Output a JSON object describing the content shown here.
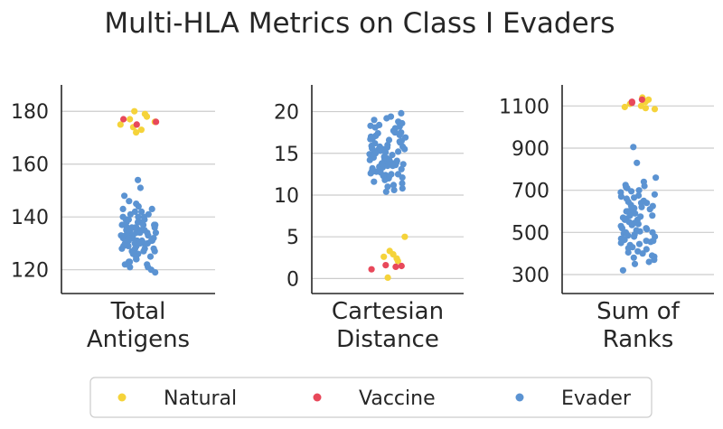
{
  "chart_data": {
    "type": "scatter",
    "title": "Multi-HLA Metrics on Class I Evaders",
    "grid": "horizontal",
    "legend_placement": "bottom",
    "series_colors": {
      "Natural": "#f5d33a",
      "Vaccine": "#e8485a",
      "Evader": "#5b93d2"
    },
    "legend": [
      "Natural",
      "Vaccine",
      "Evader"
    ],
    "panels": [
      {
        "category": "Total\nAntigens",
        "category_lines": [
          "Total",
          "Antigens"
        ],
        "yticks": [
          120,
          140,
          160,
          180
        ],
        "ylim": [
          111,
          190
        ],
        "series": [
          {
            "name": "Natural",
            "values": [
              180,
              179,
              178,
              177,
              176,
              175,
              174,
              173,
              172
            ]
          },
          {
            "name": "Vaccine",
            "values": [
              177,
              176,
              175
            ]
          },
          {
            "name": "Evader",
            "values": [
              154,
              151,
              148,
              146,
              145,
              144,
              143,
              143,
              142,
              142,
              141,
              141,
              140,
              140,
              140,
              139,
              139,
              139,
              138,
              138,
              138,
              137,
              137,
              137,
              137,
              136,
              136,
              136,
              136,
              135,
              135,
              135,
              135,
              134,
              134,
              134,
              134,
              133,
              133,
              133,
              133,
              132,
              132,
              132,
              132,
              131,
              131,
              131,
              131,
              130,
              130,
              130,
              130,
              129,
              129,
              129,
              128,
              128,
              128,
              127,
              127,
              127,
              126,
              126,
              125,
              125,
              124,
              124,
              123,
              123,
              122,
              122,
              121,
              121,
              120,
              119,
              128,
              131,
              134,
              137,
              130,
              133,
              136,
              126,
              139
            ]
          }
        ]
      },
      {
        "category": "Cartesian\nDistance",
        "category_lines": [
          "Cartesian",
          "Distance"
        ],
        "yticks": [
          0,
          5,
          10,
          15,
          20
        ],
        "ylim": [
          -1.8,
          23.2
        ],
        "series": [
          {
            "name": "Natural",
            "values": [
              5.0,
              3.3,
              2.9,
              2.6,
              2.4,
              2.1,
              0.1
            ]
          },
          {
            "name": "Vaccine",
            "values": [
              1.6,
              1.5,
              1.4,
              1.1
            ]
          },
          {
            "name": "Evader",
            "values": [
              19.8,
              19.4,
              19.2,
              19.0,
              18.8,
              18.6,
              18.4,
              18.3,
              18.1,
              18.0,
              17.8,
              17.7,
              17.5,
              17.4,
              17.2,
              17.1,
              17.0,
              16.8,
              16.7,
              16.6,
              16.4,
              16.3,
              16.2,
              16.0,
              15.9,
              15.8,
              15.7,
              15.6,
              15.5,
              15.4,
              15.3,
              15.2,
              15.1,
              15.0,
              14.9,
              14.8,
              14.7,
              14.6,
              14.5,
              14.4,
              14.3,
              14.2,
              14.1,
              14.0,
              13.9,
              13.8,
              13.7,
              13.6,
              13.5,
              13.4,
              13.3,
              13.2,
              13.1,
              13.0,
              12.9,
              12.8,
              12.7,
              12.6,
              12.5,
              12.4,
              12.3,
              12.2,
              12.1,
              12.0,
              11.8,
              11.6,
              11.4,
              11.2,
              11.0,
              10.8,
              10.6,
              10.4,
              15.5,
              16.5,
              14.5,
              13.5,
              17.5,
              12.5,
              15.8,
              14.2,
              16.9,
              13.8,
              18.2,
              15.1,
              12.8
            ]
          }
        ]
      },
      {
        "category": "Sum of\nRanks",
        "category_lines": [
          "Sum of",
          "Ranks"
        ],
        "yticks": [
          300,
          500,
          700,
          900,
          1100
        ],
        "ylim": [
          210,
          1200
        ],
        "series": [
          {
            "name": "Natural",
            "values": [
              1140,
              1130,
              1120,
              1110,
              1100,
              1095,
              1090,
              1085
            ]
          },
          {
            "name": "Vaccine",
            "values": [
              1130,
              1120,
              1115
            ]
          },
          {
            "name": "Evader",
            "values": [
              905,
              830,
              760,
              740,
              725,
              720,
              715,
              710,
              700,
              695,
              690,
              680,
              675,
              670,
              665,
              660,
              650,
              645,
              640,
              630,
              625,
              620,
              615,
              610,
              600,
              595,
              590,
              580,
              575,
              570,
              565,
              560,
              550,
              545,
              540,
              535,
              530,
              520,
              515,
              510,
              505,
              500,
              495,
              490,
              485,
              480,
              470,
              465,
              460,
              455,
              450,
              445,
              440,
              430,
              425,
              420,
              410,
              405,
              400,
              390,
              385,
              380,
              370,
              360,
              350,
              320,
              600,
              560,
              520,
              640,
              480,
              580,
              540,
              620,
              500,
              460
            ]
          }
        ]
      }
    ]
  }
}
